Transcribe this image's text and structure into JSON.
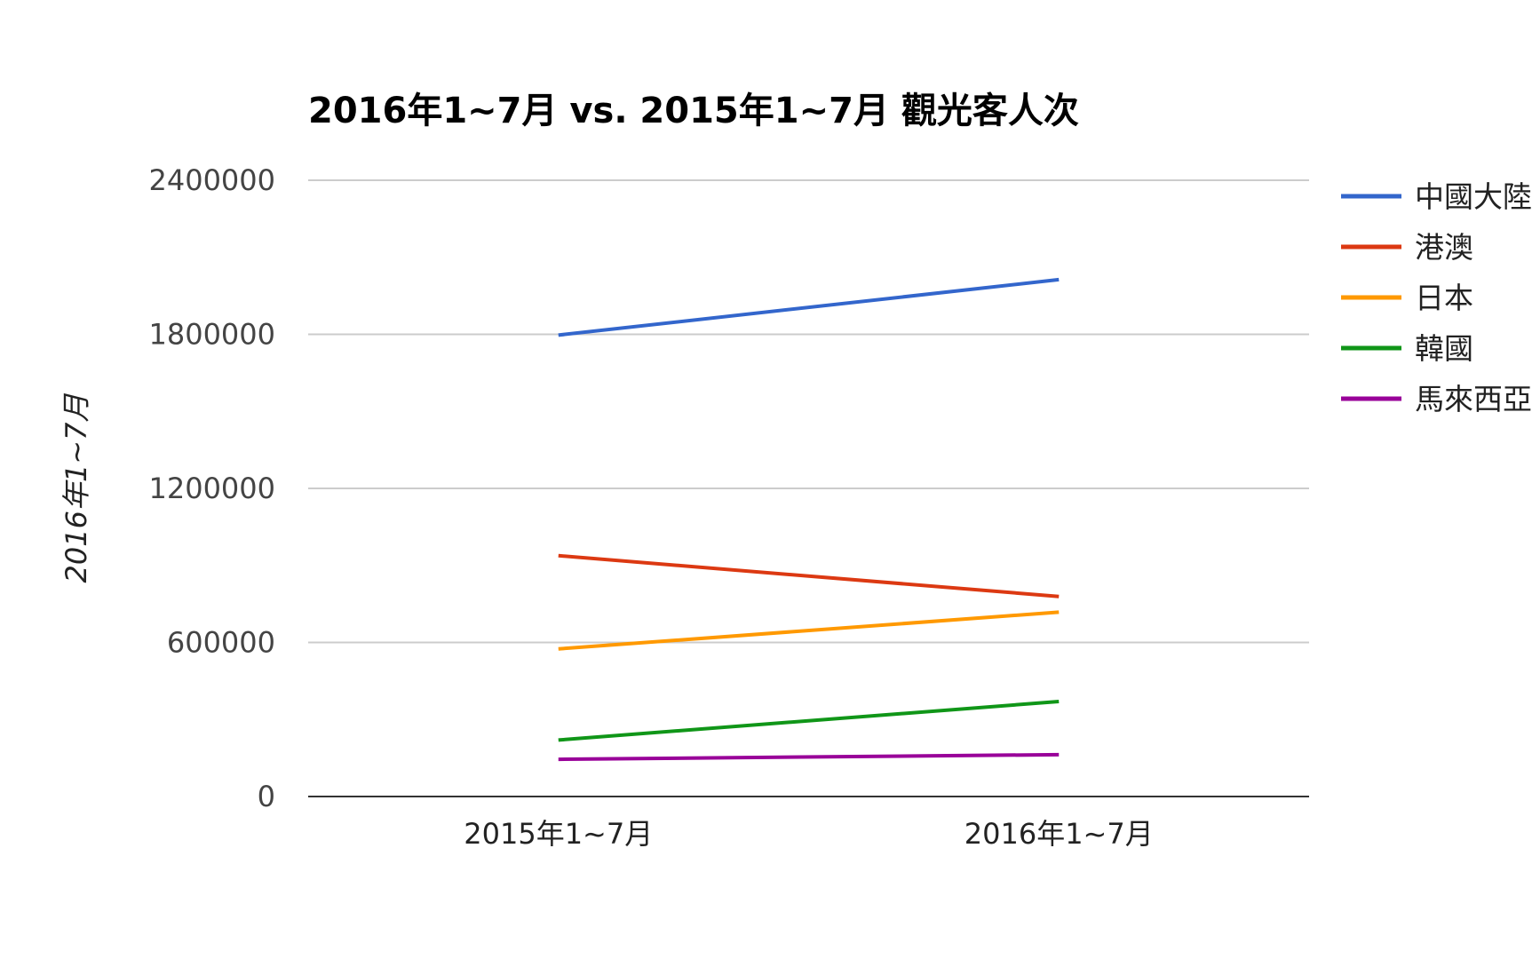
{
  "chart_data": {
    "type": "line",
    "title": "2016年1~7月 vs. 2015年1~7月 觀光客人次",
    "ylabel": "2016年1~7月",
    "xlabel": "",
    "categories": [
      "2015年1~7月",
      "2016年1~7月"
    ],
    "ylim": [
      0,
      2400000
    ],
    "yticks": [
      "0",
      "600000",
      "1200000",
      "1800000",
      "2400000"
    ],
    "grid": true,
    "legend_position": "right",
    "series": [
      {
        "name": "中國大陸",
        "color": "#3366cc",
        "values": [
          1797000,
          2013000
        ]
      },
      {
        "name": "港澳",
        "color": "#dc3912",
        "values": [
          938000,
          779000
        ]
      },
      {
        "name": "日本",
        "color": "#ff9900",
        "values": [
          575000,
          718000
        ]
      },
      {
        "name": "韓國",
        "color": "#109618",
        "values": [
          220000,
          370000
        ]
      },
      {
        "name": "馬來西亞",
        "color": "#990099",
        "values": [
          145000,
          163000
        ]
      }
    ]
  }
}
